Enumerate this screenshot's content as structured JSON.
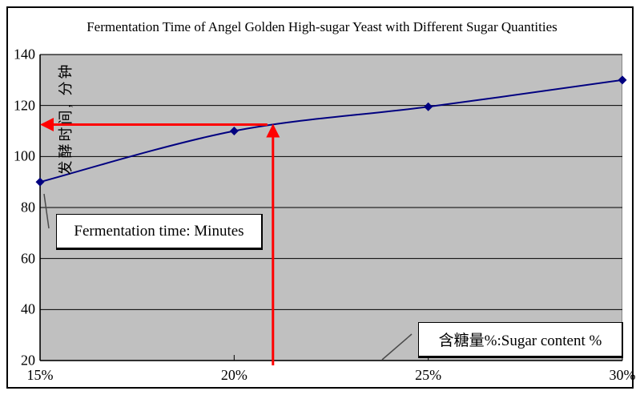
{
  "chart_data": {
    "type": "line",
    "title": "Fermentation Time of Angel Golden High-sugar Yeast with Different Sugar Quantities",
    "y_axis_title": "发酵时间, 分钟",
    "categories": [
      "15%",
      "20%",
      "25%",
      "30%"
    ],
    "x_values_percent": [
      15,
      20,
      25,
      30
    ],
    "values": [
      90,
      110,
      119.5,
      130
    ],
    "yticks": [
      140,
      120,
      100,
      80,
      60,
      40,
      20
    ],
    "ylim": [
      20,
      140
    ],
    "xlim_percent": [
      15,
      30
    ],
    "smoothed": true,
    "grid": "horizontal",
    "legend": "none",
    "marker": "diamond",
    "annotations": {
      "fermentation_box_label": "Fermentation time: Minutes",
      "sugar_box_label": "含糖量%:Sugar content %",
      "crosshair": {
        "x_percent": 21,
        "y_minutes": 112.5
      }
    },
    "colors": {
      "line": "#000080",
      "marker": "#000080",
      "plot_background": "#c0c0c0",
      "gridline": "#000000",
      "annotation_arrow": "#ff0000",
      "callout_line": "#4a4a4a",
      "chart_border": "#000000"
    }
  }
}
